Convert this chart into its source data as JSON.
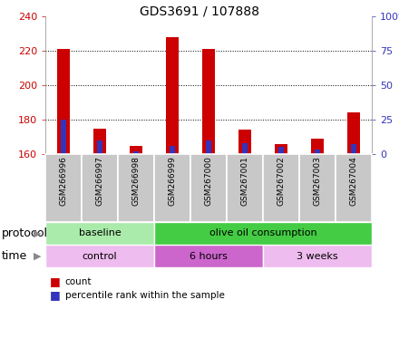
{
  "title": "GDS3691 / 107888",
  "samples": [
    "GSM266996",
    "GSM266997",
    "GSM266998",
    "GSM266999",
    "GSM267000",
    "GSM267001",
    "GSM267002",
    "GSM267003",
    "GSM267004"
  ],
  "count_values": [
    221,
    175,
    165,
    228,
    221,
    174,
    166,
    169,
    184
  ],
  "percentile_values": [
    25,
    10,
    2,
    6,
    10,
    8,
    5,
    3,
    7
  ],
  "ylim_left": [
    160,
    240
  ],
  "ylim_right": [
    0,
    100
  ],
  "yticks_left": [
    160,
    180,
    200,
    220,
    240
  ],
  "yticks_right": [
    0,
    25,
    50,
    75,
    100
  ],
  "count_color": "#CC0000",
  "percentile_color": "#3333BB",
  "protocol_groups": [
    {
      "label": "baseline",
      "start": 0,
      "end": 3,
      "color": "#AAEAAA"
    },
    {
      "label": "olive oil consumption",
      "start": 3,
      "end": 9,
      "color": "#44CC44"
    }
  ],
  "time_groups": [
    {
      "label": "control",
      "start": 0,
      "end": 3,
      "color": "#EEBCEE"
    },
    {
      "label": "6 hours",
      "start": 3,
      "end": 6,
      "color": "#CC66CC"
    },
    {
      "label": "3 weeks",
      "start": 6,
      "end": 9,
      "color": "#EEBCEE"
    }
  ],
  "legend_count_label": "count",
  "legend_percentile_label": "percentile rank within the sample",
  "protocol_label": "protocol",
  "time_label": "time",
  "box_color": "#C8C8C8",
  "title_fontsize": 10,
  "axis_fontsize": 8,
  "tick_fontsize": 7,
  "sample_fontsize": 6.5,
  "row_fontsize": 8,
  "legend_fontsize": 7.5
}
